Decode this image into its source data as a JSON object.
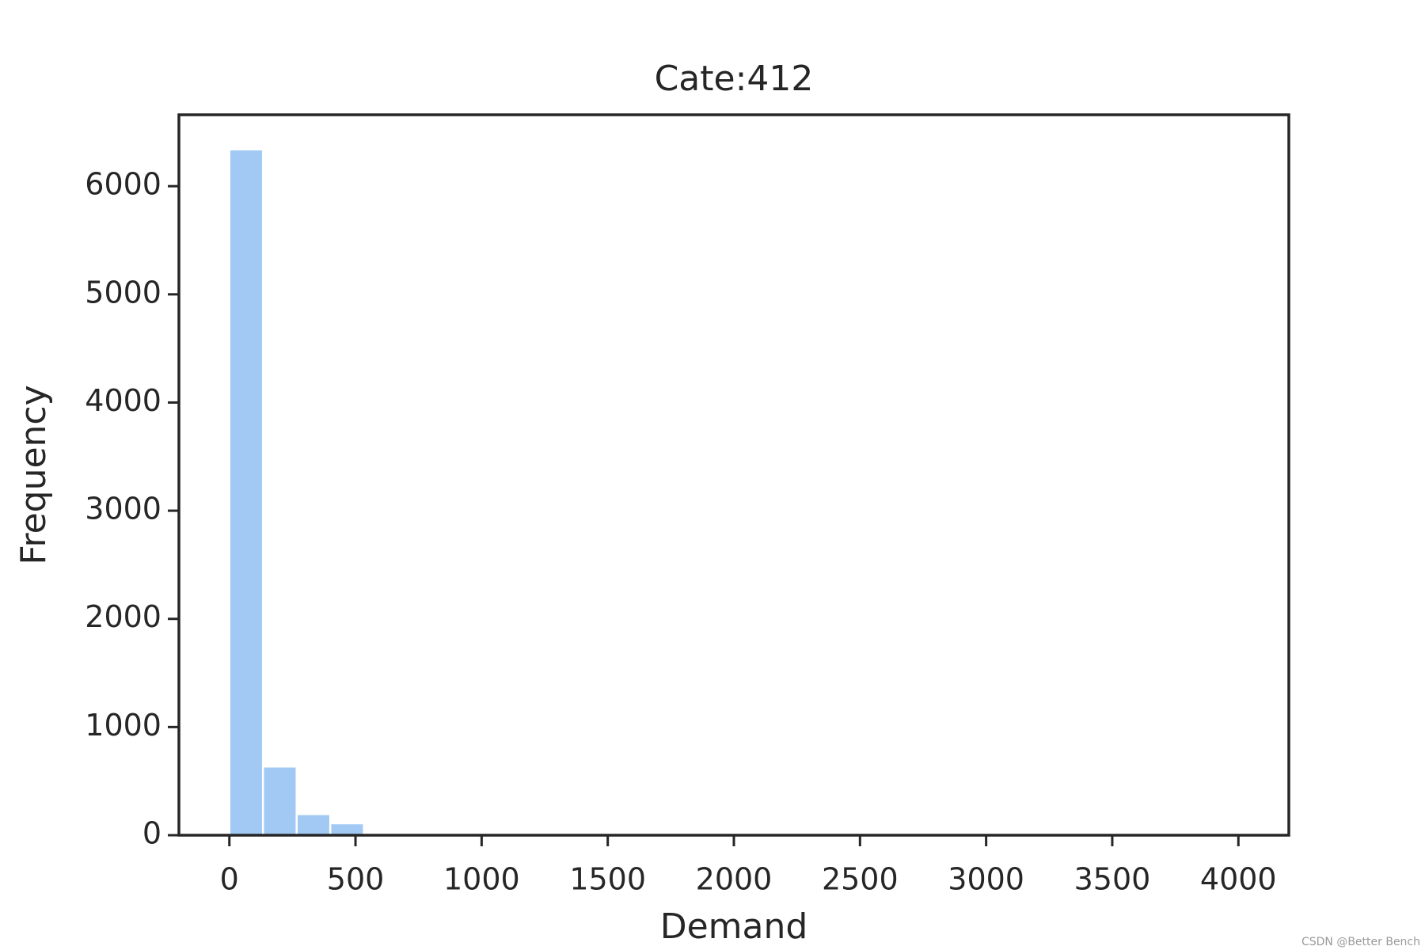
{
  "chart_data": {
    "type": "histogram",
    "title": "Cate:412",
    "x_label": "Demand",
    "y_label": "Frequency",
    "bins": [
      0,
      133.33,
      266.67,
      400,
      533.33,
      666.67,
      800,
      933.33,
      1066.67,
      1200,
      1333.33,
      1466.67,
      1600,
      1733.33,
      1866.67,
      2000,
      2133.33,
      2266.67,
      2400,
      2533.33,
      2666.67,
      2800,
      2933.33,
      3066.67,
      3200,
      3333.33,
      3466.67,
      3600,
      3733.33,
      3866.67,
      4000
    ],
    "counts": [
      6340,
      635,
      195,
      110,
      20,
      8,
      4,
      3,
      2,
      2,
      1,
      1,
      1,
      1,
      1,
      1,
      0,
      1,
      0,
      1,
      0,
      0,
      1,
      0,
      0,
      1,
      0,
      0,
      0,
      1
    ],
    "color": "#a1c9f4",
    "xlim": [
      -200,
      4200
    ],
    "xticks": [
      0,
      500,
      1000,
      1500,
      2000,
      2500,
      3000,
      3500,
      4000
    ],
    "ylim": [
      0,
      6660
    ],
    "yticks": [
      0,
      1000,
      2000,
      3000,
      4000,
      5000,
      6000
    ],
    "grid": false
  },
  "watermark": "CSDN @Better Bench"
}
